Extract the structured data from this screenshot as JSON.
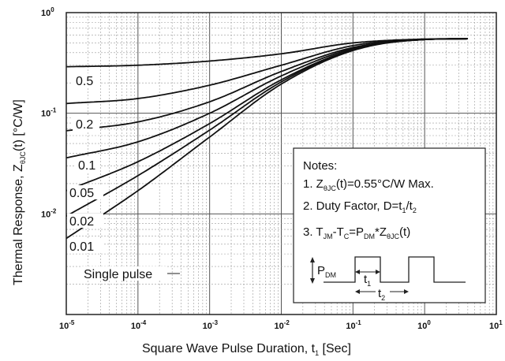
{
  "chart_data": {
    "type": "line",
    "x_scale": "log",
    "y_scale": "log",
    "xlim": [
      1e-05,
      10
    ],
    "ylim": [
      0.001,
      1
    ],
    "grid": true,
    "xlabel": "Square Wave Pulse Duration, t",
    "xlabel_sub": "1",
    "xlabel_unit": " [Sec]",
    "ylabel_prefix": "Thermal Response, Z",
    "ylabel_sub": "θJC",
    "ylabel_suffix": "(t) [°C/W]",
    "x_ticks": [
      {
        "base": "10",
        "exp": "-5"
      },
      {
        "base": "10",
        "exp": "-4"
      },
      {
        "base": "10",
        "exp": "-3"
      },
      {
        "base": "10",
        "exp": "-2"
      },
      {
        "base": "10",
        "exp": "-1"
      },
      {
        "base": "10",
        "exp": "0"
      },
      {
        "base": "10",
        "exp": "1"
      }
    ],
    "y_ticks": [
      {
        "base": "10",
        "exp": "0"
      },
      {
        "base": "10",
        "exp": "-1"
      },
      {
        "base": "10",
        "exp": "-2"
      }
    ],
    "series": [
      {
        "name": "0.5",
        "x": [
          1e-05,
          0.0001,
          0.001,
          0.01,
          0.1,
          1,
          4
        ],
        "y": [
          0.29,
          0.3,
          0.33,
          0.39,
          0.5,
          0.545,
          0.55
        ]
      },
      {
        "name": "0.2",
        "x": [
          1e-05,
          0.0001,
          0.001,
          0.01,
          0.1,
          1,
          4
        ],
        "y": [
          0.125,
          0.14,
          0.19,
          0.3,
          0.47,
          0.545,
          0.55
        ]
      },
      {
        "name": "0.1",
        "x": [
          1e-05,
          0.0001,
          0.001,
          0.01,
          0.1,
          1,
          4
        ],
        "y": [
          0.067,
          0.082,
          0.13,
          0.26,
          0.45,
          0.54,
          0.55
        ]
      },
      {
        "name": "0.05",
        "x": [
          1e-05,
          0.0001,
          0.001,
          0.01,
          0.1,
          1,
          4
        ],
        "y": [
          0.036,
          0.052,
          0.1,
          0.235,
          0.44,
          0.54,
          0.55
        ]
      },
      {
        "name": "0.02",
        "x": [
          1e-05,
          0.0001,
          0.001,
          0.01,
          0.1,
          1,
          4
        ],
        "y": [
          0.017,
          0.033,
          0.079,
          0.215,
          0.43,
          0.54,
          0.55
        ]
      },
      {
        "name": "0.01",
        "x": [
          1e-05,
          0.0001,
          0.001,
          0.01,
          0.1,
          1,
          4
        ],
        "y": [
          0.0095,
          0.024,
          0.068,
          0.205,
          0.43,
          0.54,
          0.55
        ]
      },
      {
        "name": "Single pulse",
        "x": [
          1e-05,
          0.0001,
          0.001,
          0.01,
          0.1,
          1,
          4
        ],
        "y": [
          0.0057,
          0.017,
          0.058,
          0.195,
          0.42,
          0.54,
          0.55
        ]
      }
    ]
  },
  "notes": {
    "title": "Notes:",
    "line1": {
      "a": "1. Z",
      "sub": "θJC",
      "b": "(t)=0.55°C/W Max."
    },
    "line2": {
      "a": "2. Duty Factor, D=t",
      "sub1": "1",
      "b": "/t",
      "sub2": "2"
    },
    "line3": {
      "a": "3. T",
      "sub1": "JM",
      "b": "-T",
      "sub2": "C",
      "c": "=P",
      "sub3": "DM",
      "d": "*Z",
      "sub4": "θJC",
      "e": "(t)"
    },
    "diagram": {
      "p": "P",
      "p_sub": "DM",
      "t1": "t",
      "t1_sub": "1",
      "t2": "t",
      "t2_sub": "2"
    }
  }
}
